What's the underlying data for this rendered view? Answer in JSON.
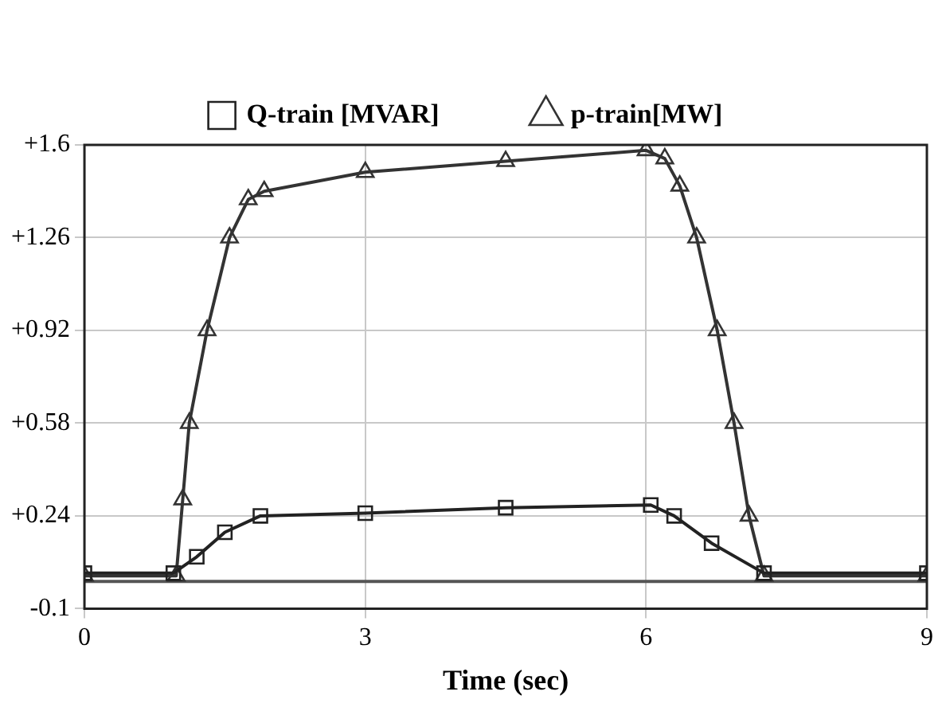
{
  "chart_data": {
    "type": "line",
    "xlabel": "Time (sec)",
    "xlim": [
      0,
      9
    ],
    "xticks": [
      0,
      3,
      6,
      9
    ],
    "ylim": [
      -0.1,
      1.6
    ],
    "yticks": [
      -0.1,
      {
        "value": 0.24,
        "label": "+0.24"
      },
      {
        "value": 0.58,
        "label": "+0.58"
      },
      {
        "value": 0.92,
        "label": "+0.92"
      },
      {
        "value": 1.26,
        "label": "+1.26"
      },
      {
        "value": 1.6,
        "label": "+1.6"
      }
    ],
    "grid": true,
    "legend": "top",
    "line_style": "solid",
    "ref_lines": [
      {
        "axis": "y",
        "value": 0,
        "color": "#555555"
      }
    ],
    "series": [
      {
        "name": "Q-train [MVAR]",
        "color": "#222222",
        "marker": "square",
        "x": [
          0,
          0.95,
          1.2,
          1.5,
          1.88,
          3,
          4.5,
          6.05,
          6.3,
          6.7,
          7.26,
          9
        ],
        "values": [
          0.03,
          0.03,
          0.09,
          0.18,
          0.24,
          0.25,
          0.27,
          0.28,
          0.24,
          0.14,
          0.03,
          0.03
        ]
      },
      {
        "name": "p-train[MW]",
        "color": "#333333",
        "marker": "triangle",
        "x": [
          0,
          0.98,
          1.05,
          1.12,
          1.31,
          1.55,
          1.75,
          1.92,
          3,
          4.5,
          6,
          6.2,
          6.36,
          6.54,
          6.76,
          6.94,
          7.1,
          7.26,
          9
        ],
        "values": [
          0.02,
          0.02,
          0.3,
          0.58,
          0.92,
          1.26,
          1.4,
          1.43,
          1.5,
          1.54,
          1.58,
          1.55,
          1.45,
          1.26,
          0.92,
          0.58,
          0.24,
          0.02,
          0.02
        ]
      }
    ]
  }
}
